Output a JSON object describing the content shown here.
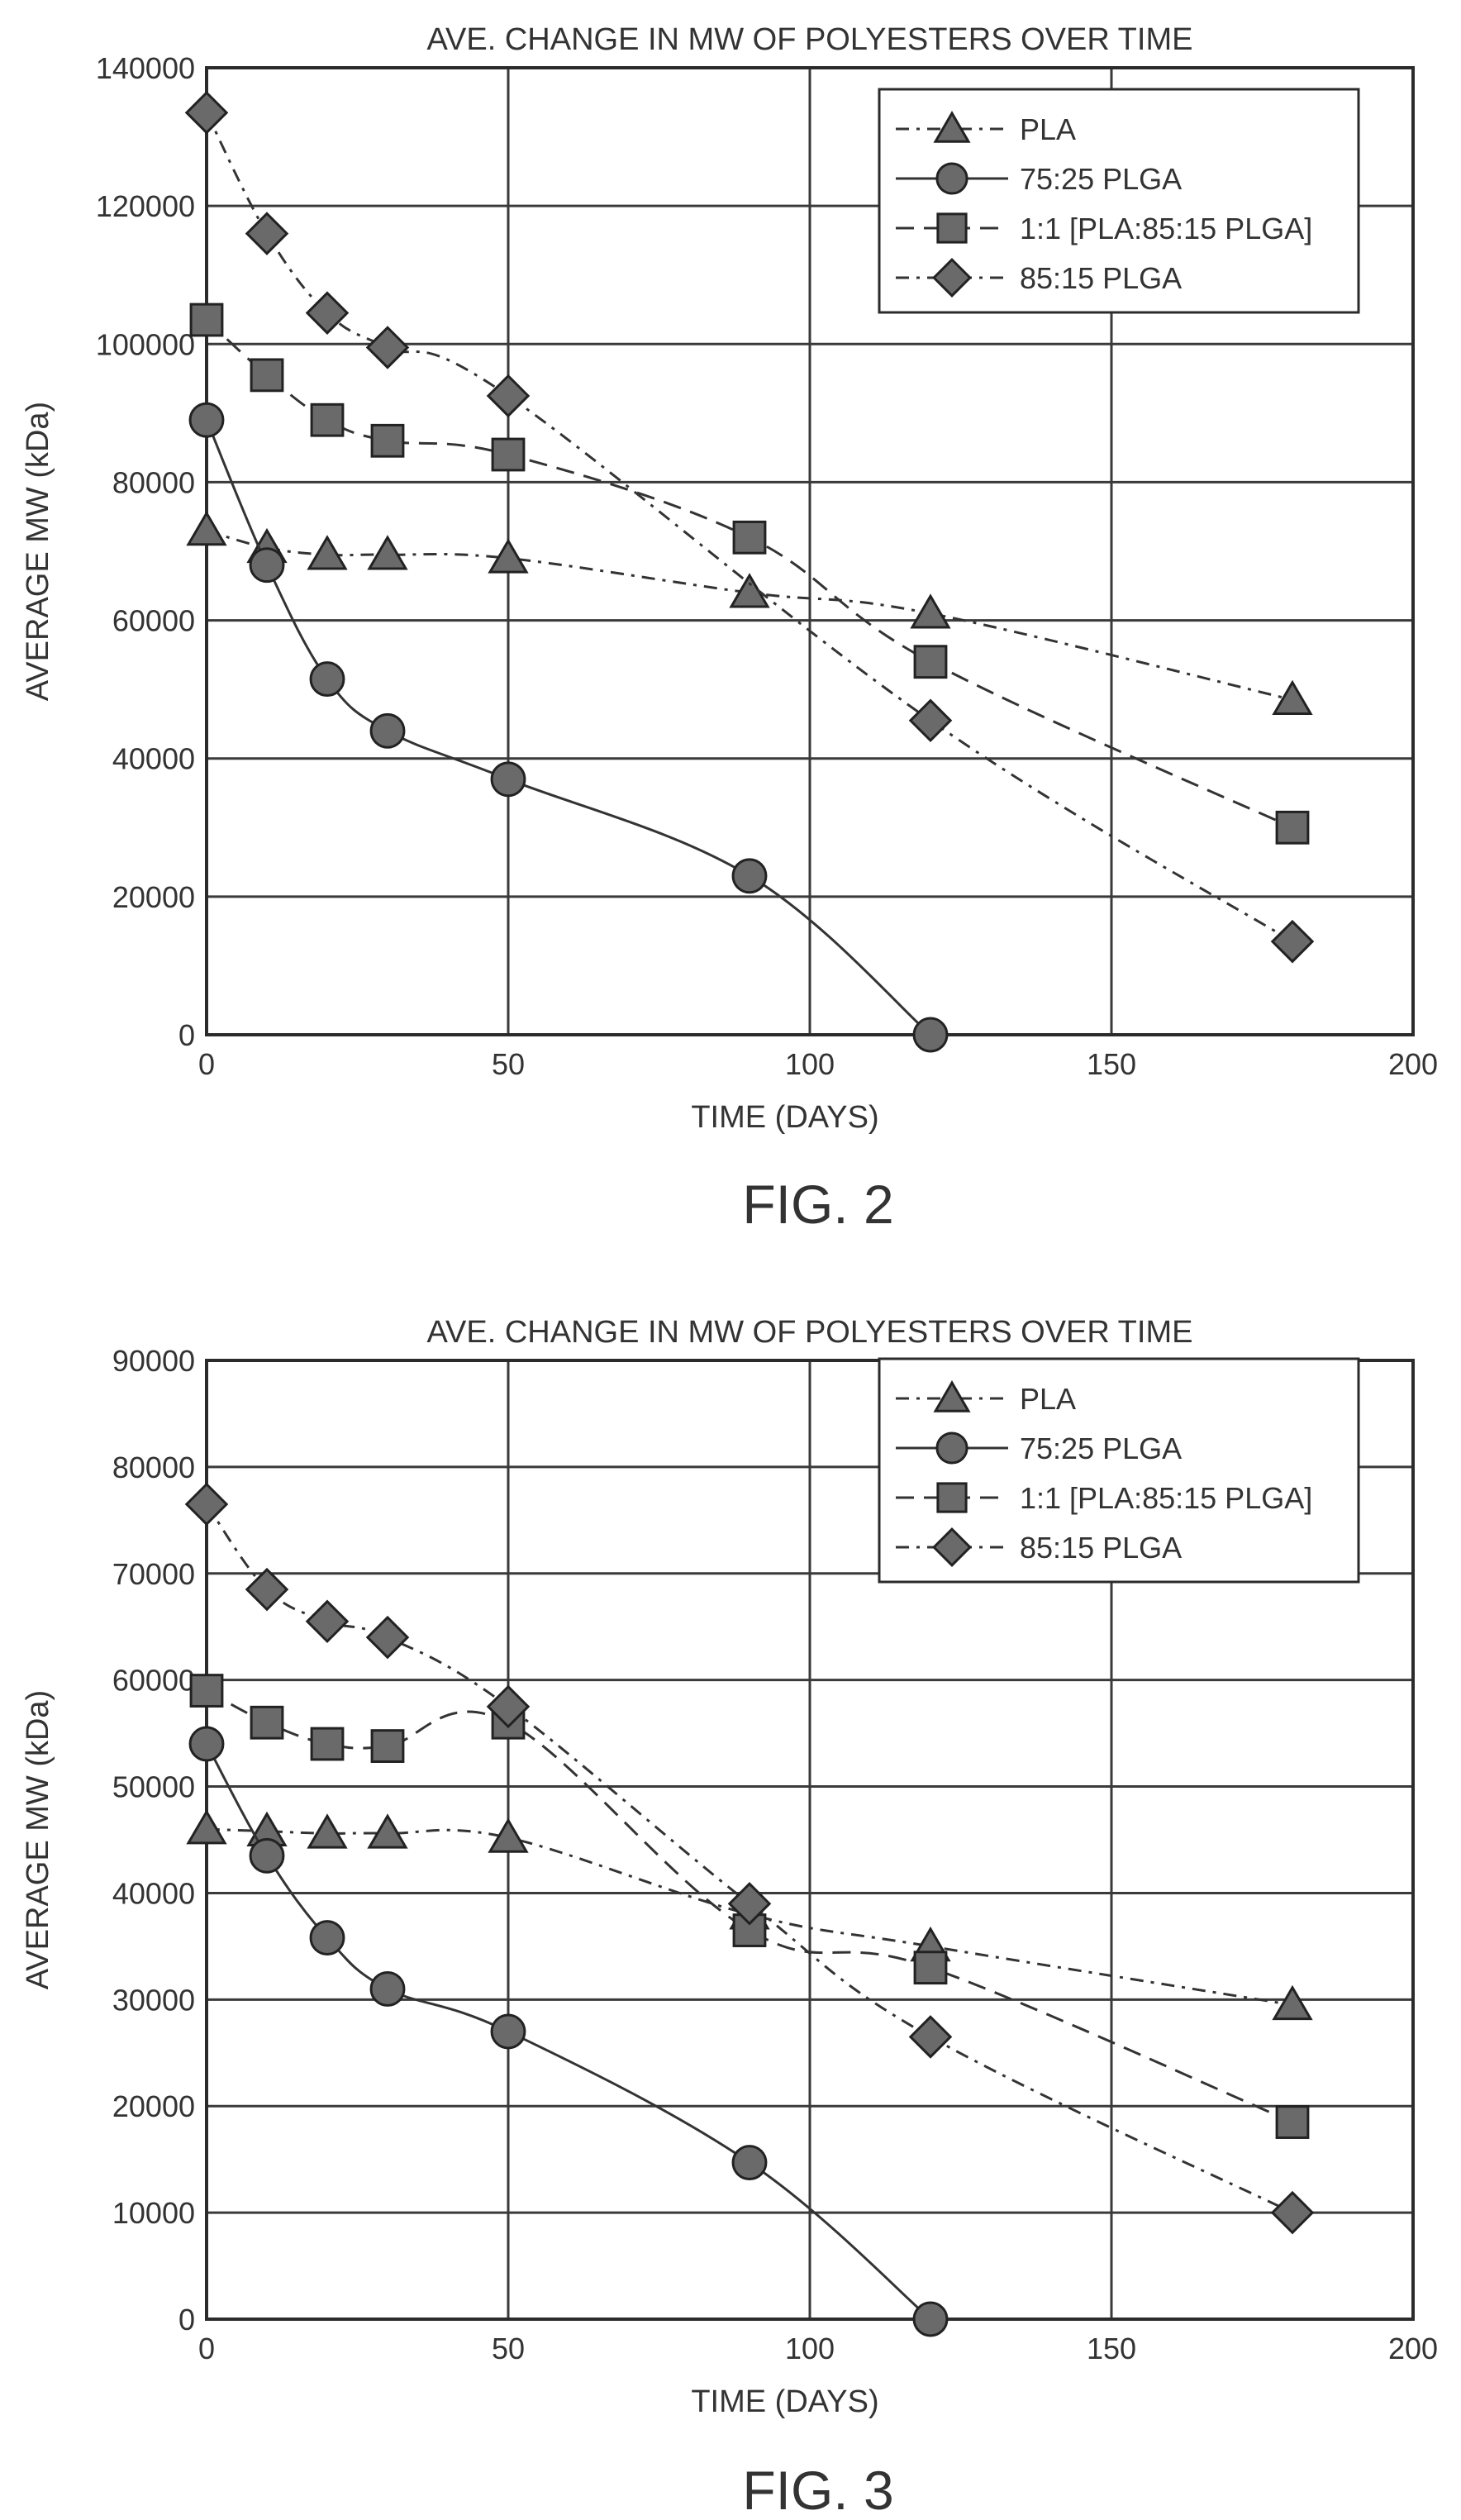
{
  "chart_data": [
    {
      "type": "line",
      "title": "AVE. CHANGE IN MW OF POLYESTERS OVER TIME",
      "caption": "FIG. 2",
      "xlabel": "TIME (DAYS)",
      "ylabel": "AVERAGE MW (kDa)",
      "xlim": [
        0,
        200
      ],
      "ylim": [
        0,
        140000
      ],
      "xticks": [
        0,
        50,
        100,
        150,
        200
      ],
      "yticks": [
        0,
        20000,
        40000,
        60000,
        80000,
        100000,
        120000,
        140000
      ],
      "grid": true,
      "legend_position": "top-right",
      "series": [
        {
          "name": "PLA",
          "marker": "triangle",
          "line": "dash-dot",
          "x": [
            0,
            10,
            20,
            30,
            50,
            90,
            120,
            180
          ],
          "y": [
            73000,
            70500,
            69500,
            69500,
            69000,
            64000,
            61000,
            48500
          ]
        },
        {
          "name": "75:25 PLGA",
          "marker": "circle",
          "line": "solid",
          "x": [
            0,
            10,
            20,
            30,
            50,
            90,
            120
          ],
          "y": [
            89000,
            68000,
            51500,
            44000,
            37000,
            23000,
            0
          ]
        },
        {
          "name": "1:1 [PLA:85:15 PLGA]",
          "marker": "square",
          "line": "dashed",
          "x": [
            0,
            10,
            20,
            30,
            50,
            90,
            120,
            180
          ],
          "y": [
            103500,
            95500,
            89000,
            86000,
            84000,
            72000,
            54000,
            30000
          ]
        },
        {
          "name": "85:15 PLGA",
          "marker": "diamond",
          "line": "dash-dot",
          "x": [
            0,
            10,
            20,
            30,
            50,
            120,
            180
          ],
          "y": [
            133500,
            116000,
            104500,
            99500,
            92500,
            45500,
            13500
          ]
        }
      ]
    },
    {
      "type": "line",
      "title": "AVE. CHANGE IN MW OF POLYESTERS OVER TIME",
      "caption": "FIG. 3",
      "xlabel": "TIME (DAYS)",
      "ylabel": "AVERAGE MW (kDa)",
      "xlim": [
        0,
        200
      ],
      "ylim": [
        0,
        90000
      ],
      "xticks": [
        0,
        50,
        100,
        150,
        200
      ],
      "yticks": [
        0,
        10000,
        20000,
        30000,
        40000,
        50000,
        60000,
        70000,
        80000,
        90000
      ],
      "grid": true,
      "legend_position": "top-right",
      "series": [
        {
          "name": "PLA",
          "marker": "triangle",
          "line": "dash-dot",
          "x": [
            0,
            10,
            20,
            30,
            50,
            90,
            120,
            180
          ],
          "y": [
            46000,
            45800,
            45600,
            45600,
            45200,
            38000,
            35000,
            29500
          ]
        },
        {
          "name": "75:25 PLGA",
          "marker": "circle",
          "line": "solid",
          "x": [
            0,
            10,
            20,
            30,
            50,
            90,
            120
          ],
          "y": [
            54000,
            43500,
            35800,
            31000,
            27000,
            14700,
            0
          ]
        },
        {
          "name": "1:1 [PLA:85:15 PLGA]",
          "marker": "square",
          "line": "dashed",
          "x": [
            0,
            10,
            20,
            30,
            50,
            90,
            120,
            180
          ],
          "y": [
            59000,
            56000,
            54000,
            53800,
            56000,
            36500,
            33000,
            18500
          ]
        },
        {
          "name": "85:15 PLGA",
          "marker": "diamond",
          "line": "dash-dot",
          "x": [
            0,
            10,
            20,
            30,
            50,
            90,
            120,
            180
          ],
          "y": [
            76500,
            68500,
            65500,
            64000,
            57500,
            39000,
            26500,
            10000
          ]
        }
      ]
    }
  ]
}
